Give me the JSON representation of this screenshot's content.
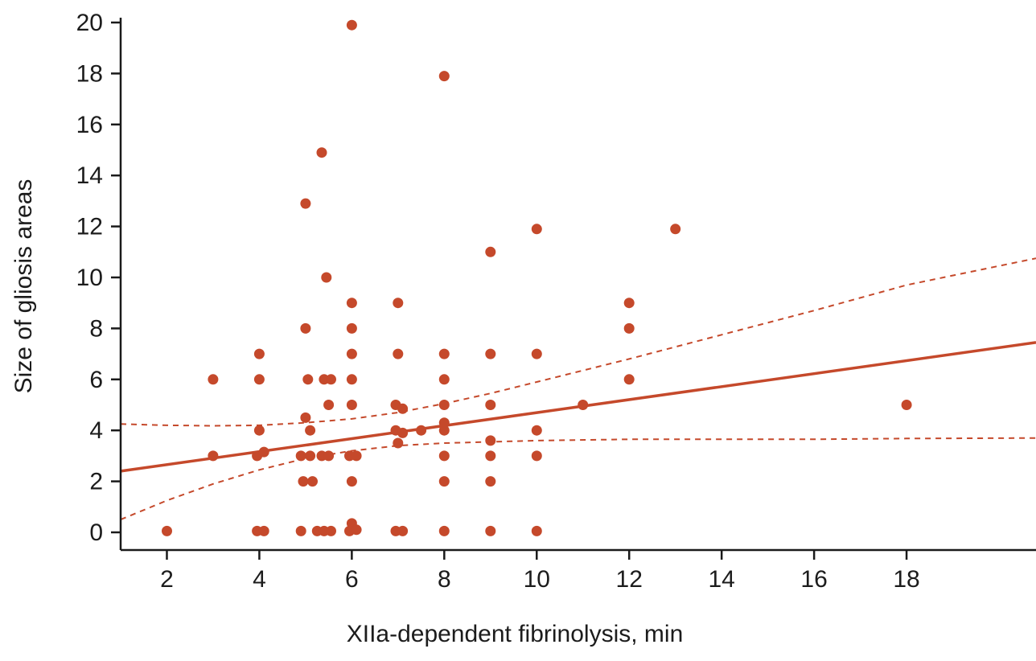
{
  "page": {
    "background": "#ffffff"
  },
  "chart_data": {
    "type": "scatter",
    "title": "",
    "xlabel": "XIIa-dependent fibrinolysis, min",
    "ylabel": "Size of gliosis areas",
    "xlim": [
      1,
      20.8
    ],
    "ylim": [
      0,
      20
    ],
    "xticks": [
      2,
      4,
      6,
      8,
      10,
      12,
      14,
      16,
      18
    ],
    "yticks": [
      0,
      2,
      4,
      6,
      8,
      10,
      12,
      14,
      16,
      18,
      20
    ],
    "grid": false,
    "legend": "none",
    "accent_color": "#c5492b",
    "axis_color": "#1a1a1a",
    "points": [
      [
        2,
        0.05
      ],
      [
        3,
        6
      ],
      [
        3,
        3
      ],
      [
        4,
        7
      ],
      [
        4,
        6
      ],
      [
        4,
        4
      ],
      [
        3.95,
        3
      ],
      [
        4.1,
        3.15
      ],
      [
        3.95,
        0.05
      ],
      [
        4.1,
        0.05
      ],
      [
        5,
        12.9
      ],
      [
        5,
        8
      ],
      [
        5.05,
        6
      ],
      [
        5,
        4.5
      ],
      [
        5.1,
        4
      ],
      [
        4.9,
        3
      ],
      [
        5.1,
        3
      ],
      [
        4.95,
        2
      ],
      [
        5.15,
        2
      ],
      [
        4.9,
        0.05
      ],
      [
        5.25,
        0.05
      ],
      [
        5.35,
        14.9
      ],
      [
        5.45,
        10
      ],
      [
        5.4,
        6
      ],
      [
        5.55,
        6
      ],
      [
        5.5,
        5
      ],
      [
        5.35,
        3
      ],
      [
        5.5,
        3
      ],
      [
        5.4,
        0.05
      ],
      [
        5.55,
        0.05
      ],
      [
        6,
        19.9
      ],
      [
        6,
        9
      ],
      [
        6,
        8
      ],
      [
        6,
        7
      ],
      [
        6,
        6
      ],
      [
        6,
        5
      ],
      [
        5.95,
        3
      ],
      [
        6.1,
        3
      ],
      [
        6,
        2
      ],
      [
        6,
        0.35
      ],
      [
        5.95,
        0.05
      ],
      [
        6.1,
        0.1
      ],
      [
        7,
        9
      ],
      [
        7,
        7
      ],
      [
        6.95,
        5
      ],
      [
        7.1,
        4.85
      ],
      [
        6.95,
        4
      ],
      [
        7.1,
        3.9
      ],
      [
        7,
        3.5
      ],
      [
        6.95,
        0.05
      ],
      [
        7.1,
        0.05
      ],
      [
        7.5,
        4
      ],
      [
        8,
        17.9
      ],
      [
        8,
        7
      ],
      [
        8,
        6
      ],
      [
        8,
        5
      ],
      [
        8,
        4.3
      ],
      [
        8,
        4
      ],
      [
        8,
        3
      ],
      [
        8,
        2
      ],
      [
        8,
        0.05
      ],
      [
        9,
        11
      ],
      [
        9,
        7
      ],
      [
        9,
        5
      ],
      [
        9,
        3.6
      ],
      [
        9,
        3
      ],
      [
        9,
        2
      ],
      [
        9,
        0.05
      ],
      [
        10,
        11.9
      ],
      [
        10,
        7
      ],
      [
        10,
        4
      ],
      [
        10,
        3
      ],
      [
        10,
        0.05
      ],
      [
        11,
        5
      ],
      [
        12,
        9
      ],
      [
        12,
        8
      ],
      [
        12,
        6
      ],
      [
        13,
        11.9
      ],
      [
        18,
        5
      ]
    ],
    "regression_line": {
      "x": [
        1,
        20.8
      ],
      "y": [
        2.4,
        7.45
      ]
    },
    "ci_upper": {
      "x": [
        1,
        2,
        3,
        4,
        5,
        6,
        7,
        8,
        9,
        10,
        12,
        14,
        16,
        18,
        20.8
      ],
      "y": [
        4.25,
        4.2,
        4.18,
        4.2,
        4.3,
        4.45,
        4.7,
        5.05,
        5.45,
        5.9,
        6.8,
        7.75,
        8.7,
        9.7,
        10.75
      ]
    },
    "ci_lower": {
      "x": [
        1,
        2,
        3,
        4,
        5,
        6,
        7,
        8,
        9,
        10,
        12,
        14,
        16,
        18,
        20.8
      ],
      "y": [
        0.5,
        1.25,
        1.9,
        2.45,
        2.9,
        3.2,
        3.4,
        3.5,
        3.55,
        3.6,
        3.65,
        3.65,
        3.65,
        3.68,
        3.7
      ]
    }
  }
}
